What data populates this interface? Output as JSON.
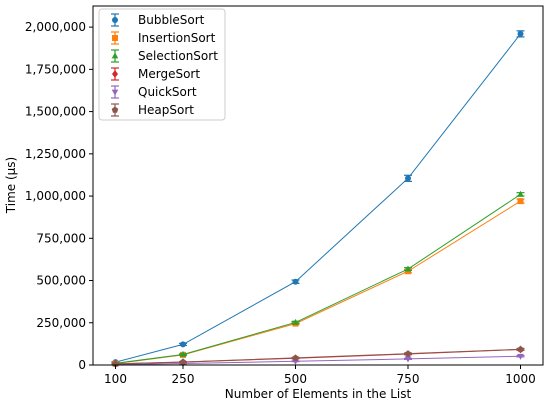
{
  "chart_data": {
    "type": "line",
    "title": "",
    "xlabel": "Number of Elements in the List",
    "ylabel": "Time (µs)",
    "x": [
      100,
      250,
      500,
      750,
      1000
    ],
    "x_tick_labels": [
      "100",
      "250",
      "500",
      "750",
      "1000"
    ],
    "ylim": [
      0,
      2125000
    ],
    "y_ticks": [
      0,
      250000,
      500000,
      750000,
      1000000,
      1250000,
      1500000,
      1750000,
      2000000
    ],
    "y_tick_labels": [
      "0",
      "250,000",
      "500,000",
      "750,000",
      "1,000,000",
      "1,250,000",
      "1,500,000",
      "1,750,000",
      "2,000,000"
    ],
    "grid": false,
    "legend_position": "top-left",
    "error_bars": true,
    "series": [
      {
        "name": "BubbleSort",
        "color": "#1f77b4",
        "marker": "circle",
        "values": [
          17000,
          122000,
          493000,
          1105000,
          1960000
        ],
        "errors": [
          3000,
          6000,
          10000,
          18000,
          18000
        ]
      },
      {
        "name": "InsertionSort",
        "color": "#ff7f0e",
        "marker": "square",
        "values": [
          8000,
          60000,
          245000,
          555000,
          970000
        ],
        "errors": [
          2000,
          4000,
          6000,
          9000,
          12000
        ]
      },
      {
        "name": "SelectionSort",
        "color": "#2ca02c",
        "marker": "triangle-up",
        "values": [
          10000,
          62000,
          252000,
          568000,
          1010000
        ],
        "errors": [
          2000,
          4000,
          6000,
          8000,
          10000
        ]
      },
      {
        "name": "MergeSort",
        "color": "#d62728",
        "marker": "diamond",
        "values": [
          6000,
          17000,
          40000,
          65000,
          92000
        ],
        "errors": [
          1000,
          2000,
          3000,
          4000,
          5000
        ]
      },
      {
        "name": "QuickSort",
        "color": "#9467bd",
        "marker": "triangle-down",
        "values": [
          3000,
          9000,
          22000,
          36000,
          52000
        ],
        "errors": [
          1000,
          2000,
          2000,
          3000,
          4000
        ]
      },
      {
        "name": "HeapSort",
        "color": "#8c564b",
        "marker": "pentagon",
        "values": [
          7000,
          18000,
          42000,
          67000,
          93000
        ],
        "errors": [
          1000,
          2000,
          3000,
          4000,
          5000
        ]
      }
    ]
  }
}
